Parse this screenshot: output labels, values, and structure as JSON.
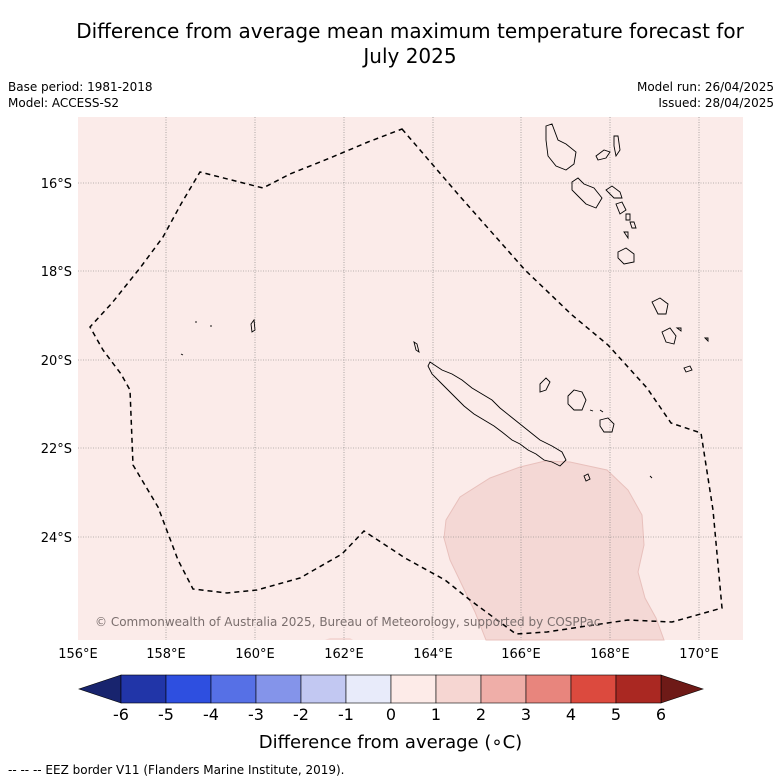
{
  "title_line1": "Difference from average mean maximum temperature forecast for",
  "title_line2": "July 2025",
  "base_period": "Base period: 1981-2018",
  "model": "Model: ACCESS-S2",
  "model_run": "Model run: 26/04/2025",
  "issued": "Issued: 28/04/2025",
  "copyright": "© Commonwealth of Australia 2025, Bureau of Meteorology, supported by COSPPac",
  "lat_labels": [
    "16°S",
    "18°S",
    "20°S",
    "22°S",
    "24°S"
  ],
  "lon_labels": [
    "156°E",
    "158°E",
    "160°E",
    "162°E",
    "164°E",
    "166°E",
    "168°E",
    "170°E"
  ],
  "colorbar": {
    "label": "Difference from average (∘C)",
    "ticks": [
      "-6",
      "-5",
      "-4",
      "-3",
      "-2",
      "-1",
      "0",
      "1",
      "2",
      "3",
      "4",
      "5",
      "6"
    ],
    "colors": [
      "#2135a8",
      "#2e4fe0",
      "#5670e6",
      "#8494ea",
      "#c2c8f2",
      "#e8ebfa",
      "#fdebe8",
      "#f6d6d2",
      "#efaea8",
      "#e8857d",
      "#dc4a3e",
      "#aa2822"
    ],
    "under_color": "#18246e",
    "over_color": "#6e1a17"
  },
  "map_colors": {
    "background": "#fbebe9",
    "anomaly_1_2": "#f4d8d5"
  },
  "footer": "--  --  -- EEZ border V11 (Flanders Marine Institute, 2019)."
}
